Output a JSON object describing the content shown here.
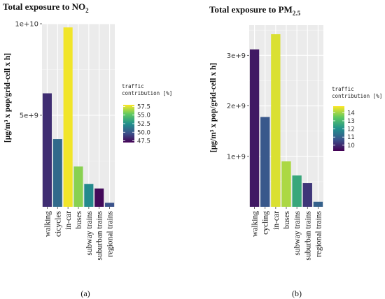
{
  "chart_data": [
    {
      "type": "bar",
      "title_main": "Total exposure to NO",
      "title_sub": "2",
      "ylabel": "[µg/m³ x pop/grid-cell  x h]",
      "categories": [
        "walking",
        "cicycles",
        "in-car",
        "buses",
        "subway trains",
        "suburban trains",
        "regional trains"
      ],
      "values": [
        6200000000.0,
        3700000000.0,
        9800000000.0,
        2200000000.0,
        1250000000.0,
        1000000000.0,
        220000000.0
      ],
      "traffic_contribution": [
        48.5,
        50.8,
        57.8,
        56.0,
        52.2,
        47.3,
        49.8
      ],
      "ylim": [
        0,
        10000000000.0
      ],
      "yticks": [
        5000000000.0,
        10000000000.0
      ],
      "ytick_labels": [
        "5e+9",
        "1e+10"
      ],
      "legend_title": [
        "traffic",
        "contribution [%]"
      ],
      "legend_range": [
        47,
        58
      ],
      "legend_ticks": [
        57.5,
        55.0,
        52.5,
        50.0,
        47.5
      ],
      "legend_tick_labels": [
        "57.5",
        "55.0",
        "52.5",
        "50.0",
        "47.5"
      ],
      "panel_label": "(a)",
      "grid": true,
      "legend_position": "right"
    },
    {
      "type": "bar",
      "title_main": "Total exposure to PM",
      "title_sub": "2.5",
      "ylabel": "[µg/m³ x pop/grid-cell  x h]",
      "categories": [
        "walking",
        "cycling",
        "in-car",
        "buses",
        "subway trains",
        "suburban trains",
        "regional trains"
      ],
      "values": [
        3120000000.0,
        1780000000.0,
        3420000000.0,
        900000000.0,
        620000000.0,
        470000000.0,
        100000000.0
      ],
      "traffic_contribution": [
        9.7,
        10.8,
        14.5,
        14.1,
        12.6,
        10.2,
        11.0
      ],
      "ylim": [
        0,
        3600000000.0
      ],
      "yticks": [
        1000000000.0,
        2000000000.0,
        3000000000.0
      ],
      "ytick_labels": [
        "1e+9",
        "2e+9",
        "3e+9"
      ],
      "legend_title": [
        "traffic",
        "contribution [%]"
      ],
      "legend_range": [
        9.3,
        14.8
      ],
      "legend_ticks": [
        14,
        13,
        12,
        11,
        10
      ],
      "legend_tick_labels": [
        "14",
        "13",
        "12",
        "11",
        "10"
      ],
      "panel_label": "(b)",
      "grid": true,
      "legend_position": "right"
    }
  ]
}
